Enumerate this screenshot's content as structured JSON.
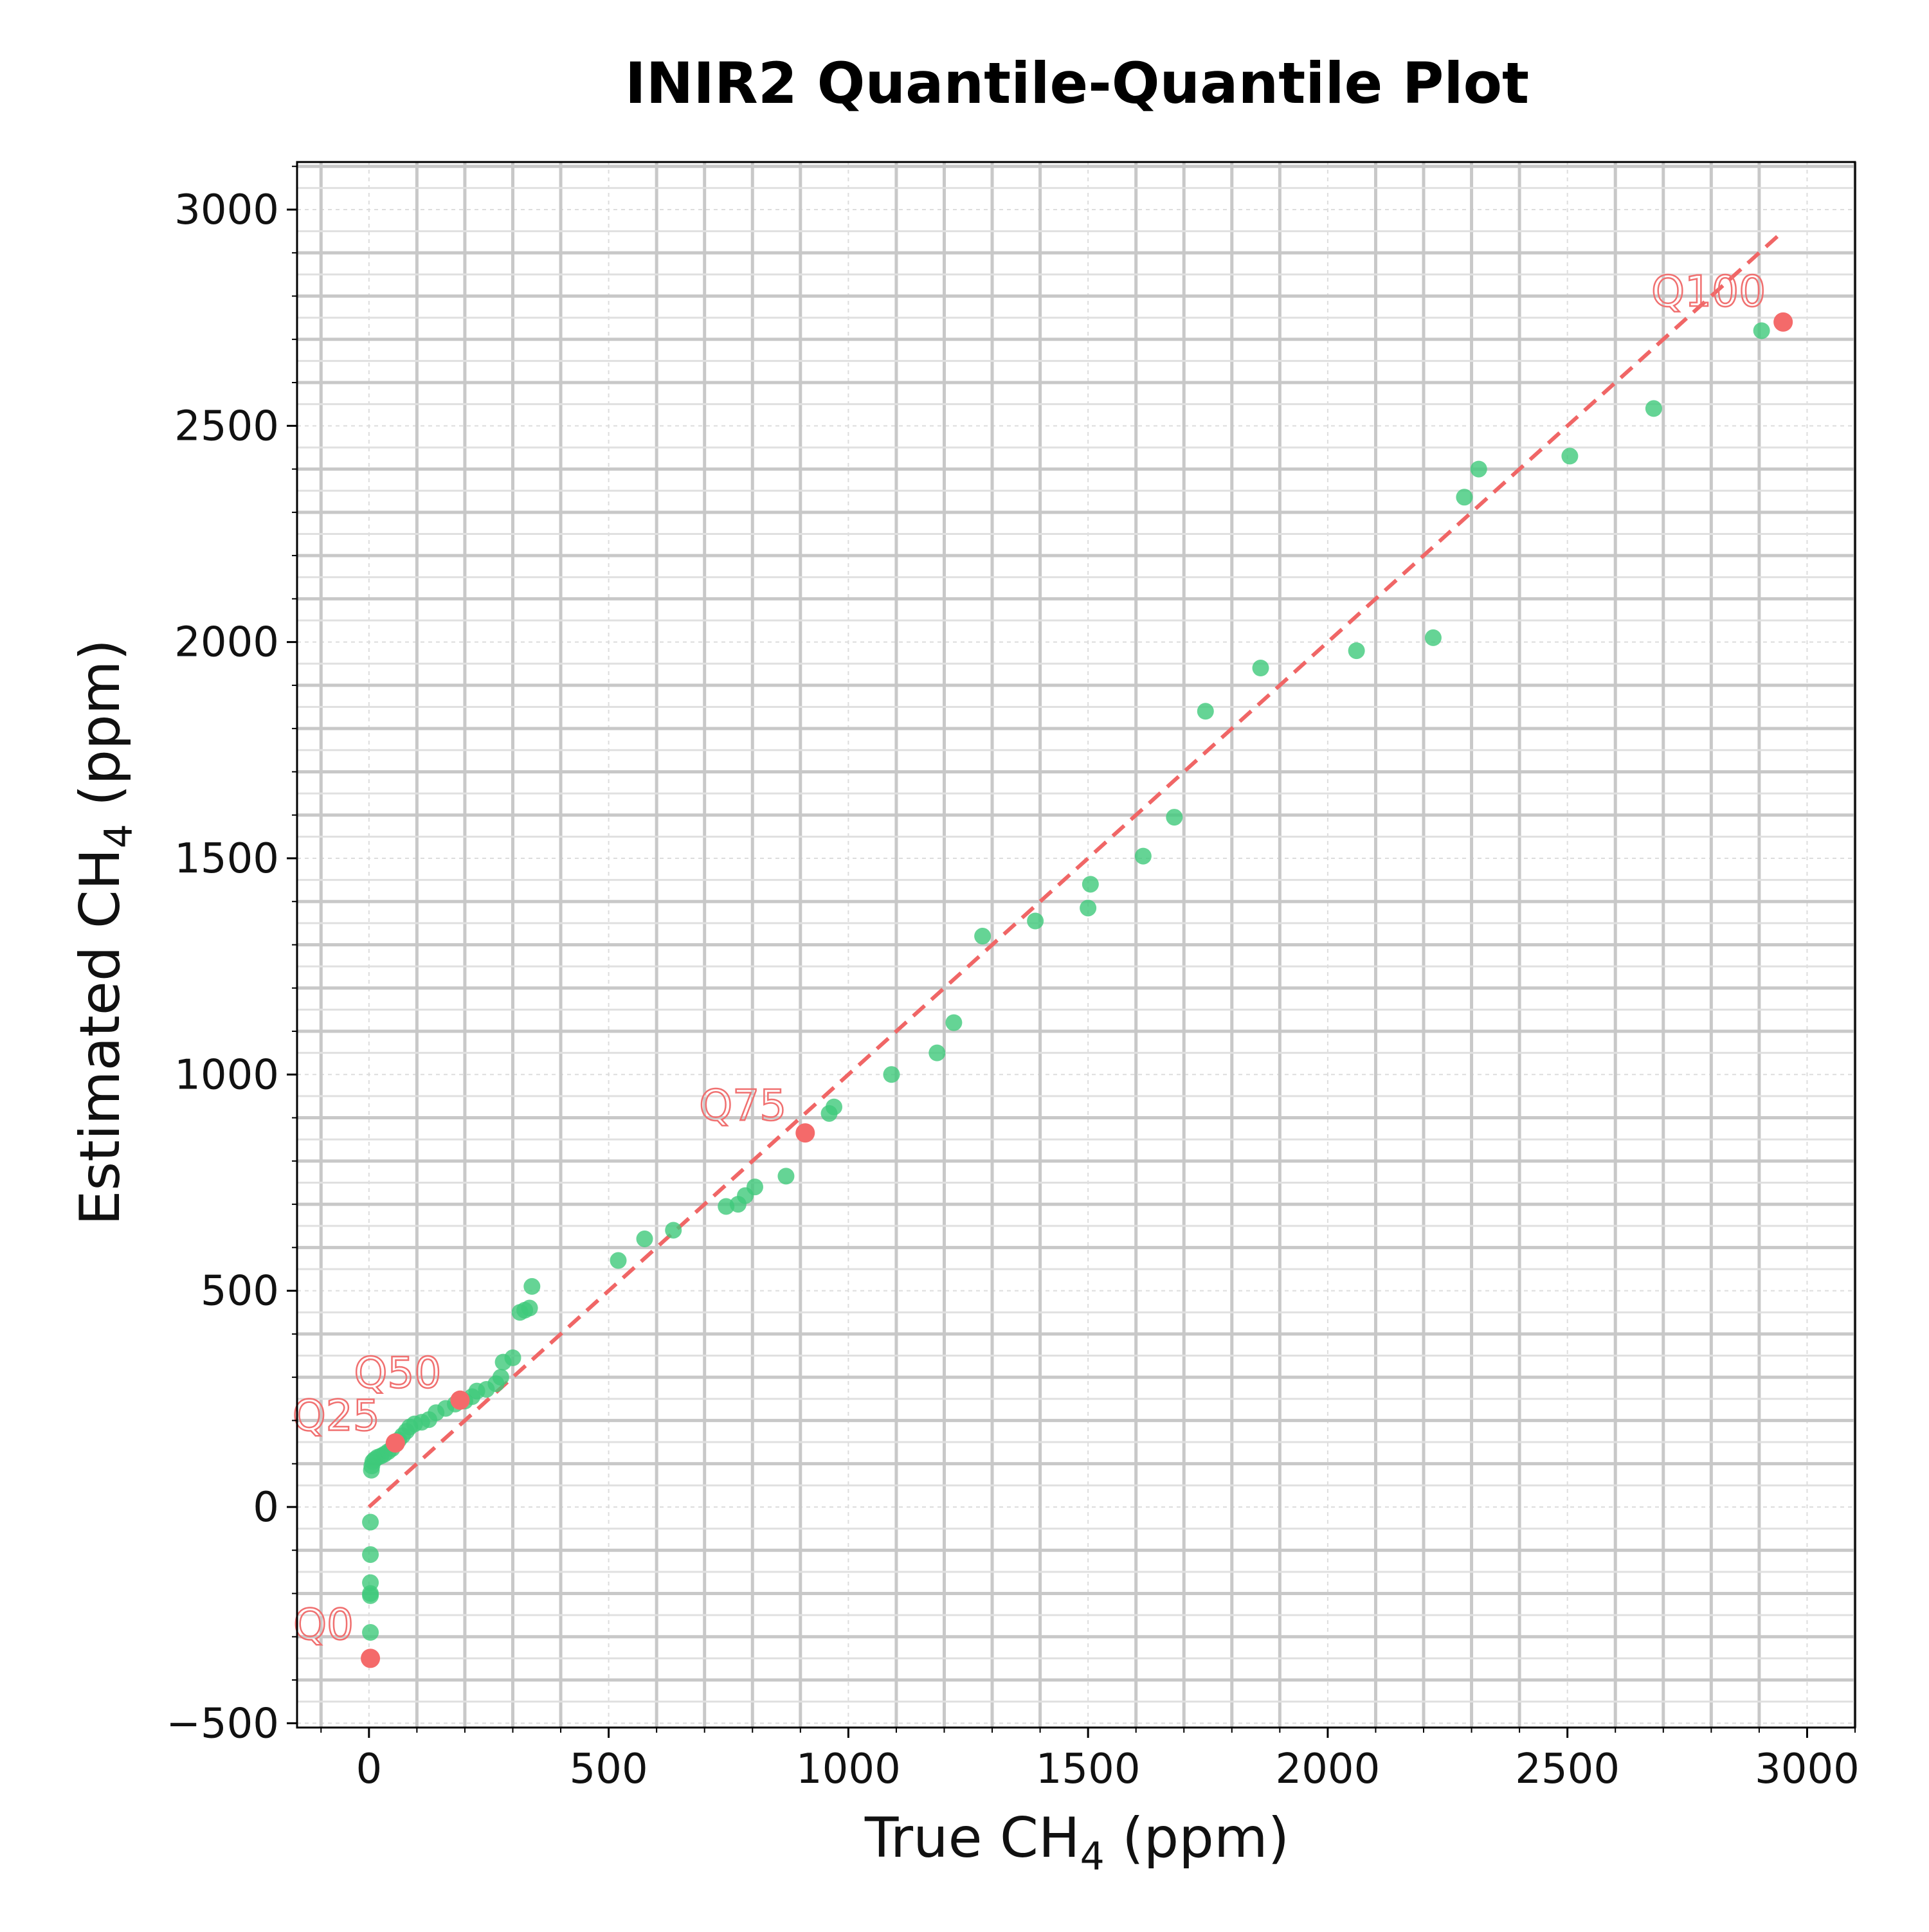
{
  "chart_data": {
    "type": "scatter",
    "title": "INIR2 Quantile-Quantile Plot",
    "xlabel": {
      "prefix": "True CH",
      "sub": "4",
      "suffix": " (ppm)"
    },
    "ylabel": {
      "prefix": "Estimated CH",
      "sub": "4",
      "suffix": " (ppm)"
    },
    "xlim": [
      -150,
      3100
    ],
    "ylim": [
      -510,
      3110
    ],
    "xticks": [
      0,
      500,
      1000,
      1500,
      2000,
      2500,
      3000
    ],
    "yticks": [
      -500,
      0,
      500,
      1000,
      1500,
      2000,
      2500,
      3000
    ],
    "xtick_labels": [
      "0",
      "500",
      "1000",
      "1500",
      "2000",
      "2500",
      "3000"
    ],
    "ytick_labels": [
      "−500",
      "0",
      "500",
      "1000",
      "1500",
      "2000",
      "2500",
      "3000"
    ],
    "grid": true,
    "colors": {
      "points": "#3ec97a",
      "quantiles": "#f46a6a",
      "reference": "#f06666",
      "grid_major": "#c8c8c8"
    },
    "reference_line": {
      "style": "dashed",
      "x": [
        0,
        2950
      ],
      "y": [
        0,
        2950
      ]
    },
    "series": [
      {
        "points": [
          [
            3,
            -350
          ],
          [
            3,
            -290
          ],
          [
            3,
            -205
          ],
          [
            3,
            -200
          ],
          [
            3,
            -175
          ],
          [
            3,
            -110
          ],
          [
            3,
            -35
          ],
          [
            5,
            85
          ],
          [
            6,
            95
          ],
          [
            8,
            105
          ],
          [
            12,
            110
          ],
          [
            18,
            115
          ],
          [
            25,
            118
          ],
          [
            32,
            122
          ],
          [
            40,
            128
          ],
          [
            48,
            135
          ],
          [
            55,
            145
          ],
          [
            62,
            155
          ],
          [
            70,
            165
          ],
          [
            78,
            175
          ],
          [
            85,
            185
          ],
          [
            95,
            192
          ],
          [
            110,
            196
          ],
          [
            125,
            202
          ],
          [
            140,
            218
          ],
          [
            160,
            228
          ],
          [
            180,
            238
          ],
          [
            200,
            245
          ],
          [
            215,
            255
          ],
          [
            225,
            268
          ],
          [
            245,
            272
          ],
          [
            265,
            285
          ],
          [
            275,
            300
          ],
          [
            280,
            335
          ],
          [
            300,
            345
          ],
          [
            315,
            450
          ],
          [
            325,
            455
          ],
          [
            335,
            460
          ],
          [
            340,
            510
          ],
          [
            520,
            570
          ],
          [
            575,
            620
          ],
          [
            635,
            640
          ],
          [
            745,
            695
          ],
          [
            770,
            700
          ],
          [
            785,
            720
          ],
          [
            805,
            740
          ],
          [
            870,
            765
          ],
          [
            960,
            910
          ],
          [
            970,
            925
          ],
          [
            1090,
            1000
          ],
          [
            1185,
            1050
          ],
          [
            1220,
            1120
          ],
          [
            1280,
            1320
          ],
          [
            1390,
            1355
          ],
          [
            1500,
            1385
          ],
          [
            1505,
            1440
          ],
          [
            1615,
            1505
          ],
          [
            1680,
            1595
          ],
          [
            1745,
            1840
          ],
          [
            1860,
            1940
          ],
          [
            2060,
            1980
          ],
          [
            2220,
            2010
          ],
          [
            2285,
            2335
          ],
          [
            2315,
            2400
          ],
          [
            2505,
            2430
          ],
          [
            2680,
            2540
          ],
          [
            2905,
            2720
          ]
        ]
      },
      {
        "points": [
          [
            3,
            -350
          ],
          [
            55,
            148
          ],
          [
            190,
            247
          ],
          [
            910,
            865
          ],
          [
            2950,
            2740
          ]
        ],
        "labels": [
          "Q0",
          "Q25",
          "Q50",
          "Q75",
          "Q100"
        ]
      }
    ]
  }
}
